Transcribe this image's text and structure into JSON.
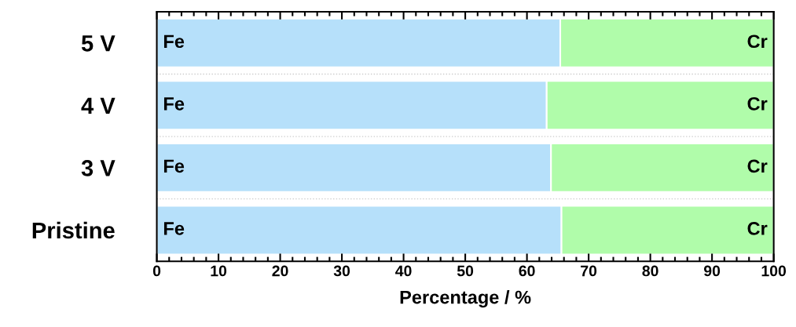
{
  "chart_data": {
    "type": "bar",
    "orientation": "horizontal",
    "stacked": true,
    "xlabel": "Percentage / %",
    "categories": [
      "5 V",
      "4 V",
      "3 V",
      "Pristine"
    ],
    "series": [
      {
        "name": "Fe",
        "color": "#b6e0fa",
        "values": [
          65.4,
          63.2,
          63.9,
          65.6
        ]
      },
      {
        "name": "Cr",
        "color": "#b0fcaa",
        "values": [
          34.6,
          36.8,
          36.1,
          34.4
        ]
      }
    ],
    "xlim": [
      0,
      100
    ],
    "xticks": [
      0,
      10,
      20,
      30,
      40,
      50,
      60,
      70,
      80,
      90,
      100
    ],
    "grid": false,
    "legend": false
  }
}
